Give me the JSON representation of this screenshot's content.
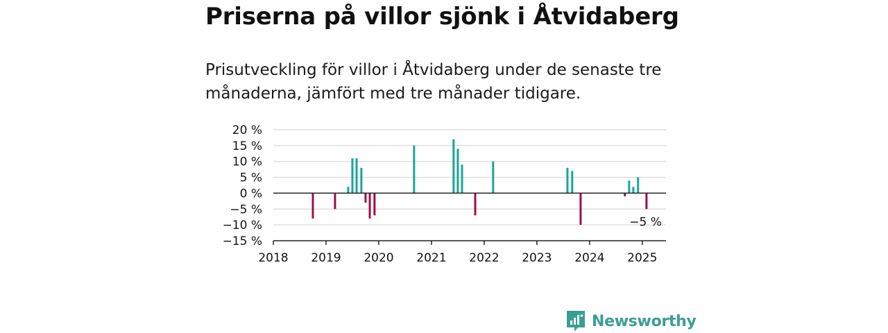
{
  "title": "Priserna på villor sjönk i Åtvidaberg",
  "subtitle": "Prisutveckling för villor i Åtvidaberg under de senaste tre månaderna, jämfört med tre månader tidigare.",
  "brand": {
    "name": "Newsworthy",
    "color": "#3a9e94"
  },
  "colors": {
    "positive": "#1aa59a",
    "negative": "#9b1048",
    "grid": "#d9d9d9",
    "axis": "#222222"
  },
  "chart_data": {
    "type": "bar",
    "title": "",
    "xlabel": "",
    "ylabel": "",
    "ylim": [
      -15,
      20
    ],
    "xlim": [
      2018,
      2025.45
    ],
    "y_ticks": [
      20,
      15,
      10,
      5,
      0,
      -5,
      -10,
      -15
    ],
    "y_tick_labels": [
      "20 %",
      "15 %",
      "10 %",
      "5 %",
      "0 %",
      "−5 %",
      "−10 %",
      "−15 %"
    ],
    "x_ticks": [
      2018,
      2019,
      2020,
      2021,
      2022,
      2023,
      2024,
      2025
    ],
    "x_tick_labels": [
      "2018",
      "2019",
      "2020",
      "2021",
      "2022",
      "2023",
      "2024",
      "2025"
    ],
    "grid": true,
    "annotation": {
      "text": "−5 %",
      "x": 2025.08,
      "y": -5
    },
    "x": [
      2018.75,
      2019.17,
      2019.42,
      2019.5,
      2019.58,
      2019.67,
      2019.75,
      2019.83,
      2019.92,
      2020.67,
      2021.42,
      2021.5,
      2021.58,
      2021.83,
      2022.17,
      2023.58,
      2023.67,
      2023.83,
      2024.67,
      2024.75,
      2024.83,
      2024.92,
      2025.08
    ],
    "values": [
      -8,
      -5,
      2,
      11,
      11,
      8,
      -3,
      -8,
      -7,
      15,
      17,
      14,
      9,
      -7,
      10,
      8,
      7,
      -10,
      -1,
      4,
      2,
      5,
      -5
    ]
  }
}
